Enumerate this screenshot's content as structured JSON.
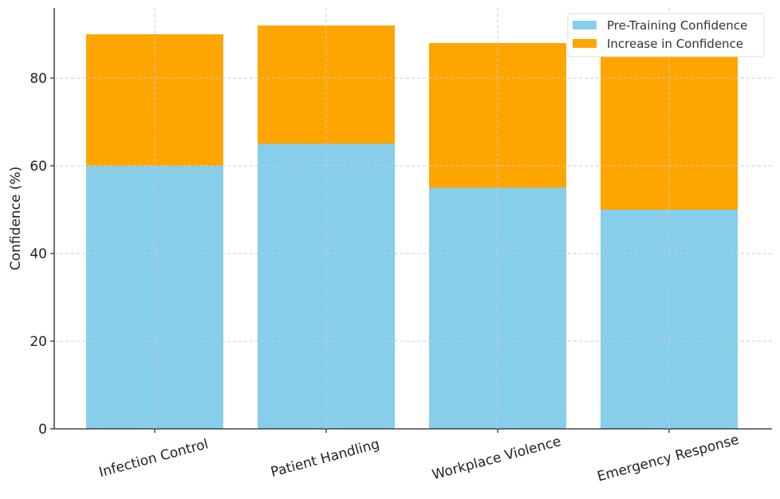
{
  "chart_data": {
    "type": "bar",
    "stacked": true,
    "categories": [
      "Infection Control",
      "Patient Handling",
      "Workplace Violence",
      "Emergency Response"
    ],
    "series": [
      {
        "name": "Pre-Training Confidence",
        "values": [
          60,
          65,
          55,
          50
        ],
        "color": "#87ceeb"
      },
      {
        "name": "Increase in Confidence",
        "values": [
          30,
          27,
          33,
          35
        ],
        "color": "#ffa500"
      }
    ],
    "title": "",
    "xlabel": "",
    "ylabel": "Confidence (%)",
    "ylim": [
      0,
      96
    ],
    "yticks": [
      0,
      20,
      40,
      60,
      80
    ],
    "grid": true,
    "legend_position": "top-right",
    "x_tick_rotation": -15
  }
}
